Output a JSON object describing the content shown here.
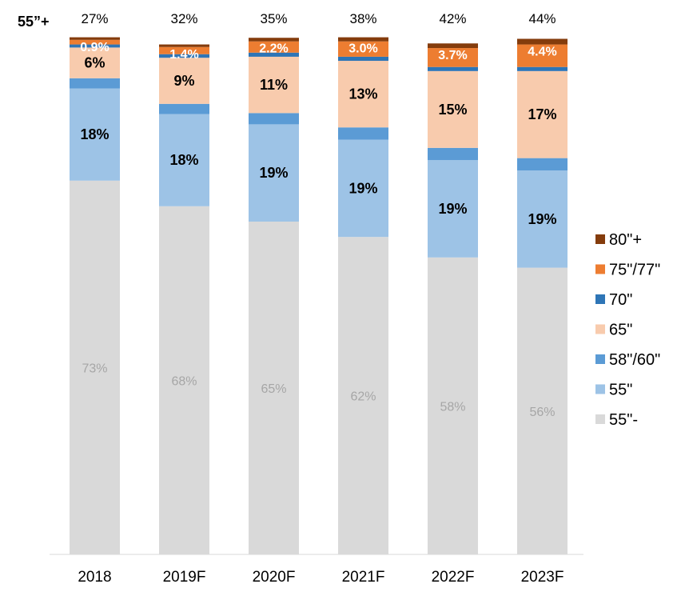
{
  "chart_data": {
    "type": "stacked-bar",
    "row_label": "55”+",
    "categories": [
      "2018",
      "2019F",
      "2020F",
      "2021F",
      "2022F",
      "2023F"
    ],
    "totals_55_plus": [
      "27%",
      "32%",
      "35%",
      "38%",
      "42%",
      "44%"
    ],
    "ylim": [
      0,
      100
    ],
    "legend_position": "right",
    "grid": false,
    "series": [
      {
        "name": "55\"-",
        "color": "#d9d9d9",
        "values": [
          73,
          68,
          65,
          62,
          58,
          56
        ],
        "labels": [
          "73%",
          "68%",
          "65%",
          "62%",
          "58%",
          "56%"
        ]
      },
      {
        "name": "55\"",
        "color": "#9dc3e6",
        "values": [
          18,
          18,
          19,
          19,
          19,
          19
        ],
        "labels": [
          "18%",
          "18%",
          "19%",
          "19%",
          "19%",
          "19%"
        ]
      },
      {
        "name": "58\"/60\"",
        "color": "#5b9bd5",
        "values": [
          2,
          2,
          2.2,
          2.4,
          2.4,
          2.4
        ],
        "labels": [
          "",
          "",
          "",
          "",
          "",
          ""
        ]
      },
      {
        "name": "65\"",
        "color": "#f8cbad",
        "values": [
          6,
          9,
          11,
          13,
          15,
          17
        ],
        "labels": [
          "6%",
          "9%",
          "11%",
          "13%",
          "15%",
          "17%"
        ]
      },
      {
        "name": "70\"",
        "color": "#2e75b6",
        "values": [
          0.6,
          0.7,
          0.8,
          0.8,
          0.8,
          0.8
        ],
        "labels": [
          "",
          "",
          "",
          "",
          "",
          ""
        ]
      },
      {
        "name": "75\"/77\"",
        "color": "#ed7d31",
        "values": [
          0.9,
          1.4,
          2.2,
          3.0,
          3.7,
          4.4
        ],
        "labels": [
          "0.9%",
          "1.4%",
          "2.2%",
          "3.0%",
          "3.7%",
          "4.4%"
        ]
      },
      {
        "name": "80\"+",
        "color": "#843c0c",
        "values": [
          0.5,
          0.5,
          0.7,
          0.8,
          0.9,
          1.1
        ],
        "labels": [
          "",
          "",
          "",
          "",
          "",
          ""
        ]
      }
    ],
    "legend_order": [
      "80\"+",
      "75\"/77\"",
      "70\"",
      "65\"",
      "58\"/60\"",
      "55\"",
      "55\"-"
    ]
  }
}
